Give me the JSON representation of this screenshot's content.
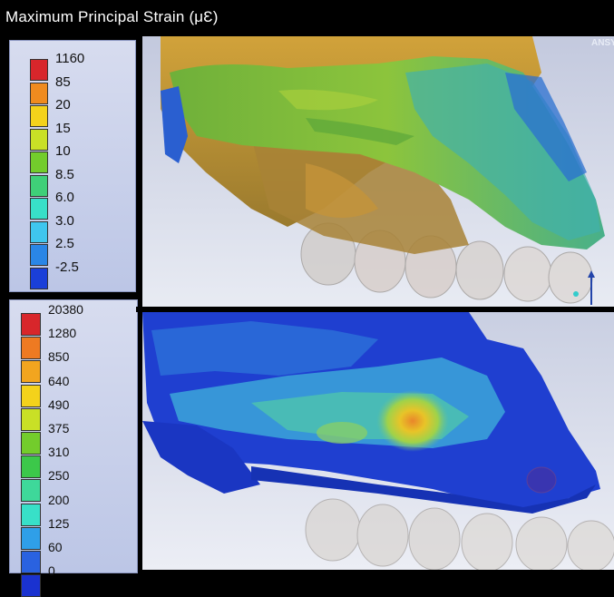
{
  "title": "Maximum Principal Strain  (μƐ)",
  "watermark": "ANSY",
  "legend_top": {
    "items": [
      {
        "label": "1160",
        "color": "#d8262b"
      },
      {
        "label": "85",
        "color": "#ef8b1f"
      },
      {
        "label": "20",
        "color": "#f4d21b"
      },
      {
        "label": "15",
        "color": "#c9e026"
      },
      {
        "label": "10",
        "color": "#73cc2c"
      },
      {
        "label": "8.5",
        "color": "#3fcf78"
      },
      {
        "label": "6.0",
        "color": "#38e0c8"
      },
      {
        "label": "3.0",
        "color": "#3fc6ee"
      },
      {
        "label": "2.5",
        "color": "#2a86e6"
      },
      {
        "label": "-2.5",
        "color": "#1a3fd8"
      }
    ]
  },
  "legend_bottom": {
    "items": [
      {
        "label": "20380",
        "color": "#d8262b"
      },
      {
        "label": "1280",
        "color": "#ee7a22"
      },
      {
        "label": "850",
        "color": "#f2a51f"
      },
      {
        "label": "640",
        "color": "#f4d21b"
      },
      {
        "label": "490",
        "color": "#c9e026"
      },
      {
        "label": "375",
        "color": "#73cc2c"
      },
      {
        "label": "310",
        "color": "#3cc84a"
      },
      {
        "label": "250",
        "color": "#3ed89a"
      },
      {
        "label": "200",
        "color": "#38e0c8"
      },
      {
        "label": "125",
        "color": "#2f9fe8"
      },
      {
        "label": "60",
        "color": "#2a62e0"
      },
      {
        "label": "0",
        "color": "#1a32d0"
      }
    ]
  },
  "colors": {
    "panel_bg_top": "#c9cfe2",
    "panel_bg_bottom": "#e6e9f2",
    "bone_orange": "#c49530",
    "bone_green": "#7cbe3c",
    "bone_blue": "#2548c8",
    "teeth": "#d8d4d0"
  }
}
